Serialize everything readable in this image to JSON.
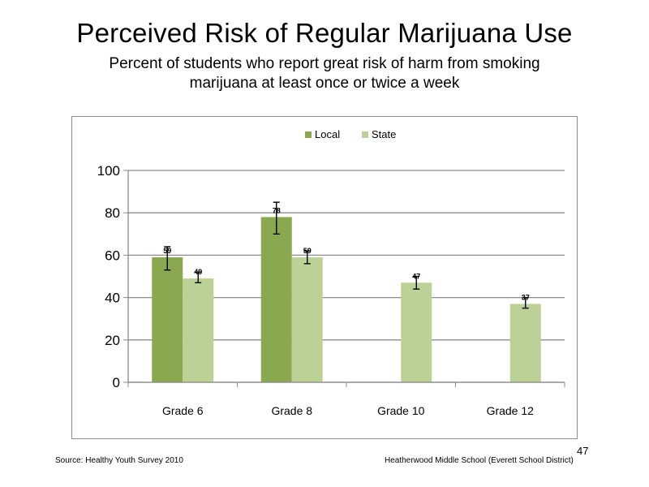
{
  "slide": {
    "title": "Perceived  Risk of Regular  Marijuana  Use",
    "subtitle_line1": "Percent of students  who report great risk of harm  from smoking",
    "subtitle_line2": "marijuana  at least once or twice a week",
    "source": "Source: Healthy  Youth Survey 2010",
    "school": "Heatherwood Middle  School (Everett School District)",
    "page_number": "47"
  },
  "colors": {
    "local": "#8aa84f",
    "state": "#bcd195",
    "grid": "#8c8c8c",
    "axis": "#8c8c8c"
  },
  "chart_data": {
    "type": "bar",
    "categories": [
      "Grade 6",
      "Grade 8",
      "Grade 10",
      "Grade 12"
    ],
    "series": [
      {
        "name": "Local",
        "values": [
          59,
          78,
          null,
          null
        ],
        "labels": [
          "59",
          "78",
          "",
          ""
        ],
        "error_low": [
          53,
          70,
          null,
          null
        ],
        "error_high": [
          64,
          85,
          null,
          null
        ]
      },
      {
        "name": "State",
        "values": [
          49,
          59,
          47,
          37
        ],
        "labels": [
          "49",
          "59",
          "47",
          "37"
        ],
        "error_low": [
          47,
          56,
          44,
          35
        ],
        "error_high": [
          52,
          62,
          50,
          40
        ]
      }
    ],
    "yticks": [
      "0",
      "20",
      "40",
      "60",
      "80",
      "100"
    ],
    "ylim": [
      0,
      100
    ],
    "grid": true,
    "legend": "top-center"
  }
}
